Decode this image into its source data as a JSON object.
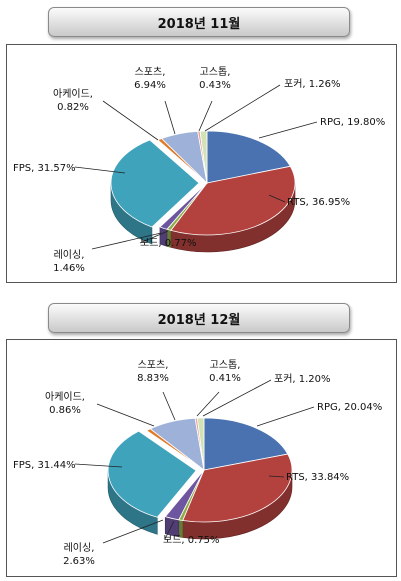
{
  "chart_data": [
    {
      "type": "pie",
      "title": "2018년 11월",
      "labels": [
        "RPG",
        "RTS",
        "보드",
        "레이싱",
        "FPS",
        "아케이드",
        "스포츠",
        "고스톱",
        "포커"
      ],
      "values": [
        19.8,
        36.95,
        0.77,
        1.46,
        31.57,
        0.82,
        6.94,
        0.43,
        1.26
      ],
      "label_texts": [
        [
          "RPG, 19.80%"
        ],
        [
          "RTS, 36.95%"
        ],
        [
          "보드, 0.77%"
        ],
        [
          "레이싱,",
          "1.46%"
        ],
        [
          "FPS, 31.57%"
        ],
        [
          "아케이드,",
          "0.82%"
        ],
        [
          "스포츠,",
          "6.94%"
        ],
        [
          "고스톱,",
          "0.43%"
        ],
        [
          "포커, 1.26%"
        ]
      ]
    },
    {
      "type": "pie",
      "title": "2018년 12월",
      "labels": [
        "RPG",
        "RTS",
        "보드",
        "레이싱",
        "FPS",
        "아케이드",
        "스포츠",
        "고스톱",
        "포커"
      ],
      "values": [
        20.04,
        33.84,
        0.75,
        2.63,
        31.44,
        0.86,
        8.83,
        0.41,
        1.2
      ],
      "label_texts": [
        [
          "RPG, 20.04%"
        ],
        [
          "RTS, 33.84%"
        ],
        [
          "보드, 0.75%"
        ],
        [
          "레이싱,",
          "2.63%"
        ],
        [
          "FPS, 31.44%"
        ],
        [
          "아케이드,",
          "0.86%"
        ],
        [
          "스포츠,",
          "8.83%"
        ],
        [
          "고스톱,",
          "0.41%"
        ],
        [
          "포커, 1.20%"
        ]
      ]
    }
  ],
  "colors": [
    "#4a72b0",
    "#b3423f",
    "#8fae4a",
    "#6e55a0",
    "#3fa3bc",
    "#e07b2a",
    "#9eb1d8",
    "#e8a3a0",
    "#d2e2b4"
  ]
}
